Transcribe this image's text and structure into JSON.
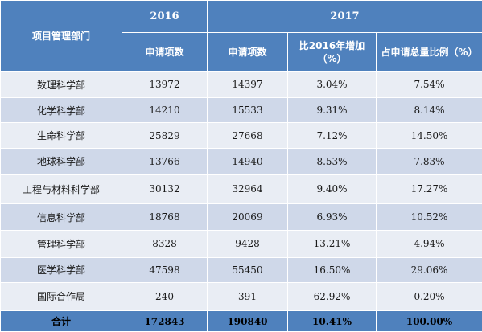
{
  "chart_data": {
    "type": "table",
    "header": {
      "dept": "项目管理部门",
      "year_2016": "2016",
      "year_2017": "2017",
      "col_2016_count": "申请项数",
      "col_2017_count": "申请项数",
      "col_increase": "比2016年增加（%）",
      "col_share": "占申请总量比例（%）"
    },
    "rows": [
      {
        "dept": "数理科学部",
        "y2016": "13972",
        "y2017": "14397",
        "increase": "3.04%",
        "share": "7.54%"
      },
      {
        "dept": "化学科学部",
        "y2016": "14210",
        "y2017": "15533",
        "increase": "9.31%",
        "share": "8.14%"
      },
      {
        "dept": "生命科学部",
        "y2016": "25829",
        "y2017": "27668",
        "increase": "7.12%",
        "share": "14.50%"
      },
      {
        "dept": "地球科学部",
        "y2016": "13766",
        "y2017": "14940",
        "increase": "8.53%",
        "share": "7.83%"
      },
      {
        "dept": "工程与材料科学部",
        "y2016": "30132",
        "y2017": "32964",
        "increase": "9.40%",
        "share": "17.27%"
      },
      {
        "dept": "信息科学部",
        "y2016": "18768",
        "y2017": "20069",
        "increase": "6.93%",
        "share": "10.52%"
      },
      {
        "dept": "管理科学部",
        "y2016": "8328",
        "y2017": "9428",
        "increase": "13.21%",
        "share": "4.94%"
      },
      {
        "dept": "医学科学部",
        "y2016": "47598",
        "y2017": "55450",
        "increase": "16.50%",
        "share": "29.06%"
      },
      {
        "dept": "国际合作局",
        "y2016": "240",
        "y2017": "391",
        "increase": "62.92%",
        "share": "0.20%"
      }
    ],
    "total": {
      "dept": "合计",
      "y2016": "172843",
      "y2017": "190840",
      "increase": "10.41%",
      "share": "100.00%"
    }
  }
}
